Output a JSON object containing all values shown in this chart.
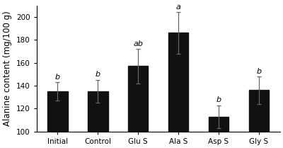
{
  "categories": [
    "Initial",
    "Control",
    "Glu S",
    "Ala S",
    "Asp S",
    "Gly S"
  ],
  "values": [
    135,
    135,
    157,
    186,
    113,
    136
  ],
  "errors": [
    8,
    10,
    15,
    18,
    10,
    12
  ],
  "sig_labels": [
    "b",
    "b",
    "ab",
    "a",
    "b",
    "b"
  ],
  "bar_color": "#111111",
  "ylabel": "Alanine content (mg/100 g)",
  "ylim": [
    100,
    210
  ],
  "yticks": [
    100,
    120,
    140,
    160,
    180,
    200
  ],
  "bar_width": 0.5,
  "sig_fontsize": 8,
  "tick_fontsize": 7.5,
  "label_fontsize": 8.5,
  "bar_bottom": 100
}
